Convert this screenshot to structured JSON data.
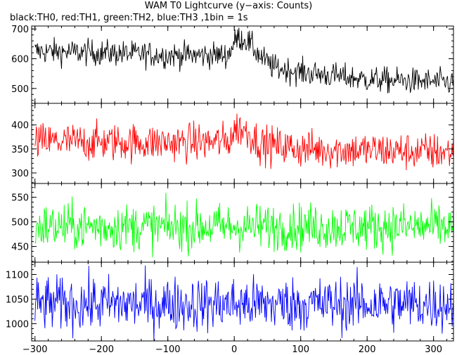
{
  "title": "WAM T0 Lightcurve (y−axis: Counts)",
  "subtitle": "black:TH0, red:TH1, green:TH2, blue:TH3 ,1bin = 1s",
  "chart_data": [
    {
      "type": "line",
      "series": [
        {
          "name": "TH0",
          "color": "#000000"
        }
      ],
      "xlim": [
        -305,
        330
      ],
      "ylim": [
        450,
        710
      ],
      "yticks": [
        500,
        600,
        700
      ],
      "ytick_labels": [
        "500",
        "600",
        "700"
      ],
      "trend": [
        [
          -300,
          625
        ],
        [
          -200,
          620
        ],
        [
          -100,
          612
        ],
        [
          -10,
          612
        ],
        [
          5,
          672
        ],
        [
          20,
          660
        ],
        [
          40,
          605
        ],
        [
          60,
          570
        ],
        [
          100,
          555
        ],
        [
          200,
          530
        ],
        [
          330,
          520
        ]
      ],
      "noise_std": 22
    },
    {
      "type": "line",
      "series": [
        {
          "name": "TH1",
          "color": "#ff0000"
        }
      ],
      "xlim": [
        -305,
        330
      ],
      "ylim": [
        278,
        445
      ],
      "yticks": [
        300,
        350,
        400
      ],
      "ytick_labels": [
        "300",
        "350",
        "400"
      ],
      "trend": [
        [
          -300,
          365
        ],
        [
          -100,
          363
        ],
        [
          -10,
          365
        ],
        [
          5,
          395
        ],
        [
          20,
          385
        ],
        [
          40,
          360
        ],
        [
          100,
          350
        ],
        [
          330,
          343
        ]
      ],
      "noise_std": 20
    },
    {
      "type": "line",
      "series": [
        {
          "name": "TH2",
          "color": "#00ff00"
        }
      ],
      "xlim": [
        -305,
        330
      ],
      "ylim": [
        418,
        578
      ],
      "yticks": [
        450,
        500,
        550
      ],
      "ytick_labels": [
        "450",
        "500",
        "550"
      ],
      "trend": [
        [
          -300,
          490
        ],
        [
          330,
          490
        ]
      ],
      "noise_std": 24
    },
    {
      "type": "line",
      "series": [
        {
          "name": "TH3",
          "color": "#0000ff"
        }
      ],
      "xlim": [
        -305,
        330
      ],
      "ylim": [
        965,
        1125
      ],
      "yticks": [
        1000,
        1050,
        1100
      ],
      "ytick_labels": [
        "1000",
        "1050",
        "1100"
      ],
      "trend": [
        [
          -300,
          1040
        ],
        [
          330,
          1040
        ]
      ],
      "noise_std": 28
    }
  ],
  "xaxis": {
    "xlim": [
      -305,
      330
    ],
    "ticks": [
      -300,
      -200,
      -100,
      0,
      100,
      200,
      300
    ],
    "tick_labels": [
      "−300",
      "−200",
      "−100",
      "0",
      "100",
      "200",
      "300"
    ],
    "minor_step": 20
  }
}
